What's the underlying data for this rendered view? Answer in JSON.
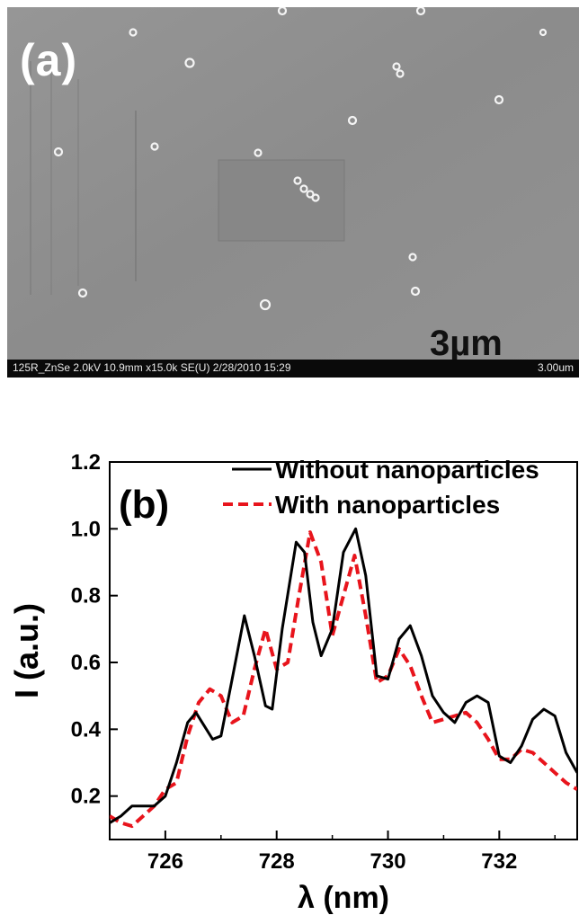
{
  "panel_a": {
    "label": "(a)",
    "scale_bar_label": "3µm",
    "info_bar_text": "125R_ZnSe 2.0kV 10.9mm x15.0k SE(U) 2/28/2010 15:29",
    "info_bar_scale": "3.00um"
  },
  "chart_data": {
    "type": "line",
    "panel_label": "(b)",
    "xlabel": "λ (nm)",
    "ylabel": "I (a.u.)",
    "xlim": [
      725,
      733.4
    ],
    "ylim": [
      0.07,
      1.2
    ],
    "xticks": [
      726,
      728,
      730,
      732
    ],
    "yticks": [
      0.2,
      0.4,
      0.6,
      0.8,
      1.0,
      1.2
    ],
    "xtick_labels": [
      "726",
      "728",
      "730",
      "732"
    ],
    "ytick_labels": [
      "0.2",
      "0.4",
      "0.6",
      "0.8",
      "1.0",
      "1.2"
    ],
    "legend_position": "top-right",
    "grid": false,
    "series": [
      {
        "name": "Without nanoparticles",
        "color": "#000000",
        "style": "solid",
        "x": [
          725.0,
          725.2,
          725.4,
          725.6,
          725.8,
          726.0,
          726.2,
          726.4,
          726.55,
          726.7,
          726.85,
          727.0,
          727.2,
          727.42,
          727.6,
          727.8,
          727.92,
          728.1,
          728.35,
          728.5,
          728.65,
          728.8,
          729.0,
          729.2,
          729.42,
          729.6,
          729.8,
          730.0,
          730.2,
          730.4,
          730.6,
          730.8,
          731.0,
          731.2,
          731.4,
          731.6,
          731.8,
          732.0,
          732.2,
          732.4,
          732.6,
          732.8,
          733.0,
          733.2,
          733.4
        ],
        "y": [
          0.12,
          0.14,
          0.17,
          0.17,
          0.17,
          0.2,
          0.3,
          0.42,
          0.45,
          0.41,
          0.37,
          0.38,
          0.55,
          0.74,
          0.62,
          0.47,
          0.46,
          0.7,
          0.96,
          0.93,
          0.72,
          0.62,
          0.7,
          0.93,
          1.0,
          0.86,
          0.56,
          0.55,
          0.67,
          0.71,
          0.62,
          0.5,
          0.45,
          0.42,
          0.48,
          0.5,
          0.48,
          0.32,
          0.3,
          0.35,
          0.43,
          0.46,
          0.44,
          0.33,
          0.27
        ]
      },
      {
        "name": "With nanoparticles",
        "color": "#e8141c",
        "style": "dashed",
        "x": [
          725.0,
          725.2,
          725.4,
          725.6,
          725.8,
          726.0,
          726.2,
          726.4,
          726.6,
          726.8,
          727.0,
          727.2,
          727.4,
          727.6,
          727.8,
          728.0,
          728.2,
          728.4,
          728.6,
          728.8,
          729.0,
          729.2,
          729.4,
          729.6,
          729.8,
          730.0,
          730.2,
          730.4,
          730.6,
          730.8,
          731.0,
          731.2,
          731.4,
          731.6,
          731.8,
          732.0,
          732.2,
          732.4,
          732.6,
          732.8,
          733.0,
          733.2,
          733.4
        ],
        "y": [
          0.14,
          0.12,
          0.11,
          0.14,
          0.17,
          0.22,
          0.24,
          0.38,
          0.48,
          0.52,
          0.5,
          0.42,
          0.44,
          0.58,
          0.7,
          0.58,
          0.6,
          0.8,
          0.99,
          0.9,
          0.68,
          0.8,
          0.92,
          0.74,
          0.54,
          0.56,
          0.64,
          0.59,
          0.5,
          0.42,
          0.43,
          0.44,
          0.45,
          0.42,
          0.37,
          0.31,
          0.31,
          0.34,
          0.33,
          0.3,
          0.27,
          0.24,
          0.22
        ]
      }
    ]
  }
}
